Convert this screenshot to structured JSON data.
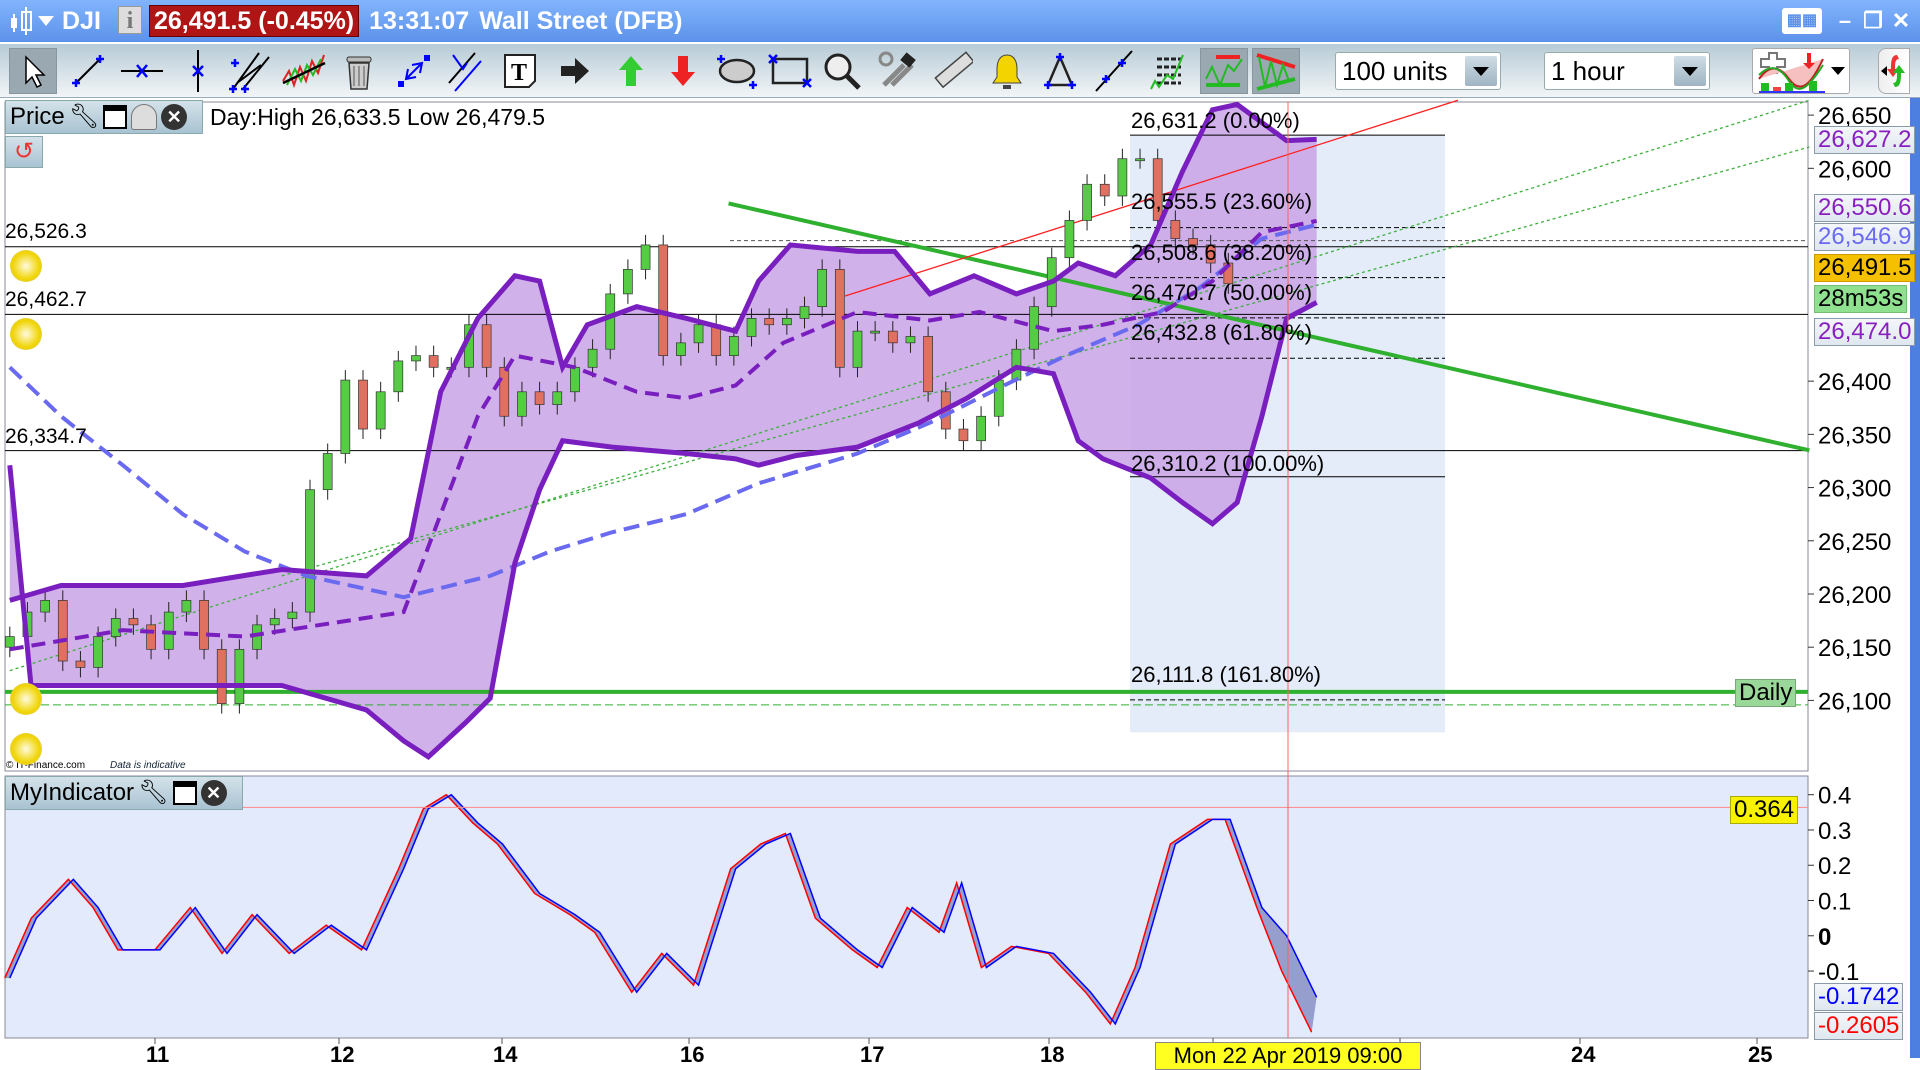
{
  "titlebar": {
    "symbol": "DJI",
    "price_change": "26,491.5 (-0.45%)",
    "time": "13:31:07",
    "market": "Wall Street (DFB)",
    "price_box_color": "#b01515"
  },
  "toolbar": {
    "tools": [
      "pointer",
      "trend-line",
      "horizontal-line",
      "vertical-line",
      "channel",
      "wave",
      "delete-all",
      "resize-line",
      "parallel-line",
      "text",
      "arrow",
      "up-arrow",
      "down-arrow",
      "ellipse",
      "rectangle",
      "zoom",
      "tools",
      "ruler",
      "alert-bell",
      "triangle",
      "ray",
      "fibonacci-listing",
      "pattern-recognition",
      "triangle-pattern"
    ],
    "units_select": "100 units",
    "interval_select": "1 hour"
  },
  "price_panel": {
    "label": "Price",
    "day_stats": "Day:High 26,633.5 Low 26,479.5",
    "watermark": "© IT-Finance.com",
    "disclaimer": "Data is indicative",
    "levels": [
      {
        "label": "26,526.3",
        "value": 26526.3
      },
      {
        "label": "26,462.7",
        "value": 26462.7
      },
      {
        "label": "26,334.7",
        "value": 26334.7
      }
    ],
    "fib": [
      {
        "label": "26,631.2 (0.00%)",
        "value": 26631.2
      },
      {
        "label": "26,555.5 (23.60%)",
        "value": 26555.5
      },
      {
        "label": "26,508.6 (38.20%)",
        "value": 26508.6
      },
      {
        "label": "26,470.7 (50.00%)",
        "value": 26470.7
      },
      {
        "label": "26,432.8 (61.80%)",
        "value": 26432.8
      },
      {
        "label": "26,310.2 (100.00%)",
        "value": 26310.2
      },
      {
        "label": "26,111.8 (161.80%)",
        "value": 26111.8
      }
    ],
    "tags": {
      "upper_band": "26,627.2",
      "middle_band": "26,550.6",
      "ma": "26,546.9",
      "last": "26,491.5",
      "countdown": "28m53s",
      "lower_band": "26,474.0",
      "daily": "Daily"
    }
  },
  "indicator_panel": {
    "label": "MyIndicator",
    "tags": {
      "crosshair": "0.364",
      "blue": "-0.1742",
      "red": "-0.2605"
    }
  },
  "colors": {
    "band": "#7a1fbf",
    "band_fill": "#c9a3e6",
    "ma": "#6a6af0",
    "trend_green": "#2fb02f",
    "bull": "#55cc44",
    "bear": "#e07060",
    "cursor": "#ff6060"
  },
  "chart_data": {
    "type": "candlestick",
    "interval": "1 hour",
    "y_ticks": [
      "26,650",
      "26,600",
      "26,400",
      "26,350",
      "26,300",
      "26,250",
      "26,200",
      "26,150",
      "26,100"
    ],
    "ylim": [
      26060,
      26670
    ],
    "x_ticks": [
      "11",
      "12",
      "14",
      "16",
      "17",
      "18",
      "24",
      "25"
    ],
    "x_highlight": "Mon 22 Apr 2019 09:00",
    "closes": [
      26160,
      26183,
      26194,
      26137,
      26131,
      26160,
      26177,
      26171,
      26148,
      26183,
      26194,
      26148,
      26097,
      26148,
      26171,
      26177,
      26183,
      26298,
      26332,
      26401,
      26355,
      26390,
      26419,
      26424,
      26413,
      26413,
      26453,
      26413,
      26367,
      26390,
      26378,
      26390,
      26413,
      26430,
      26482,
      26505,
      26528,
      26424,
      26436,
      26453,
      26424,
      26442,
      26459,
      26453,
      26459,
      26470,
      26505,
      26413,
      26447,
      26447,
      26436,
      26442,
      26390,
      26355,
      26344,
      26367,
      26401,
      26430,
      26470,
      26516,
      26551,
      26585,
      26574,
      26609,
      26609,
      26551,
      26534,
      26528,
      26511,
      26491.5
    ],
    "bollinger_upper": [
      [
        0,
        26194
      ],
      [
        2.9,
        26208
      ],
      [
        9.8,
        26208
      ],
      [
        15.4,
        26223
      ],
      [
        20.2,
        26217
      ],
      [
        22.7,
        26252
      ],
      [
        24.4,
        26390
      ],
      [
        26.5,
        26459
      ],
      [
        28.6,
        26499
      ],
      [
        30,
        26494
      ],
      [
        31.3,
        26413
      ],
      [
        32.7,
        26453
      ],
      [
        35.5,
        26470
      ],
      [
        38.3,
        26459
      ],
      [
        41.1,
        26447
      ],
      [
        42.4,
        26494
      ],
      [
        44.2,
        26528
      ],
      [
        48,
        26522
      ],
      [
        50.1,
        26522
      ],
      [
        52.1,
        26482
      ],
      [
        54.6,
        26499
      ],
      [
        57,
        26482
      ],
      [
        59.1,
        26494
      ],
      [
        60.5,
        26511
      ],
      [
        62.6,
        26499
      ],
      [
        64.6,
        26528
      ],
      [
        66.4,
        26597
      ],
      [
        68.1,
        26655
      ],
      [
        69.5,
        26660
      ],
      [
        72.3,
        26626
      ],
      [
        74,
        26627.2
      ]
    ],
    "bollinger_lower": [
      [
        0,
        26321
      ],
      [
        1.2,
        26114
      ],
      [
        9.8,
        26114
      ],
      [
        15.4,
        26114
      ],
      [
        20.2,
        26091
      ],
      [
        22.3,
        26062
      ],
      [
        23.7,
        26047
      ],
      [
        25.8,
        26079
      ],
      [
        27.2,
        26102
      ],
      [
        28.6,
        26229
      ],
      [
        30,
        26298
      ],
      [
        31.3,
        26344
      ],
      [
        34.1,
        26338
      ],
      [
        38.3,
        26332
      ],
      [
        41.1,
        26327
      ],
      [
        42.4,
        26321
      ],
      [
        44.5,
        26330
      ],
      [
        48,
        26338
      ],
      [
        51.5,
        26361
      ],
      [
        54.2,
        26384
      ],
      [
        57,
        26413
      ],
      [
        59.1,
        26407
      ],
      [
        60.5,
        26344
      ],
      [
        61.9,
        26327
      ],
      [
        64.6,
        26309
      ],
      [
        66.4,
        26286
      ],
      [
        68.1,
        26266
      ],
      [
        69.5,
        26286
      ],
      [
        70.9,
        26367
      ],
      [
        72.3,
        26459
      ],
      [
        74,
        26474
      ]
    ],
    "bollinger_middle": [
      [
        0,
        26148
      ],
      [
        6.4,
        26166
      ],
      [
        13.3,
        26160
      ],
      [
        22.3,
        26183
      ],
      [
        24.4,
        26275
      ],
      [
        26.5,
        26367
      ],
      [
        28.6,
        26424
      ],
      [
        32,
        26413
      ],
      [
        35.5,
        26390
      ],
      [
        38.3,
        26384
      ],
      [
        41.1,
        26396
      ],
      [
        43.8,
        26436
      ],
      [
        48,
        26465
      ],
      [
        52.1,
        26457
      ],
      [
        54.9,
        26465
      ],
      [
        59.1,
        26447
      ],
      [
        61.9,
        26453
      ],
      [
        65.3,
        26465
      ],
      [
        68.1,
        26494
      ],
      [
        70.9,
        26540
      ],
      [
        74,
        26550.6
      ]
    ],
    "moving_average": [
      [
        0,
        26413
      ],
      [
        2.9,
        26367
      ],
      [
        6.4,
        26321
      ],
      [
        9.8,
        26275
      ],
      [
        13.3,
        26240
      ],
      [
        16.8,
        26217
      ],
      [
        22.3,
        26197
      ],
      [
        27.2,
        26217
      ],
      [
        30.6,
        26240
      ],
      [
        34.1,
        26258
      ],
      [
        38.3,
        26275
      ],
      [
        42.4,
        26304
      ],
      [
        48,
        26332
      ],
      [
        52.1,
        26361
      ],
      [
        56.3,
        26396
      ],
      [
        59.8,
        26424
      ],
      [
        63.9,
        26453
      ],
      [
        67.4,
        26488
      ],
      [
        70.9,
        26534
      ],
      [
        74,
        26546.9
      ]
    ],
    "trendlines": [
      {
        "color": "#2fb02f",
        "style": "solid",
        "from": [
          40.7,
          26567
        ],
        "to": [
          101.9,
          26335
        ]
      },
      {
        "color": "#ff2020",
        "style": "thin",
        "from": [
          47.3,
          26480
        ],
        "to": [
          82,
          26664
        ]
      },
      {
        "color": "#3cb03c",
        "style": "dotted",
        "from": [
          0,
          26128
        ],
        "to": [
          101.9,
          26664
        ]
      },
      {
        "color": "#3cb03c",
        "style": "dotted",
        "from": [
          15.4,
          26217
        ],
        "to": [
          101.9,
          26620
        ]
      }
    ],
    "daily_level": 26108,
    "indicator": {
      "y_ticks": [
        "0.4",
        "0.3",
        "0.2",
        "0.1",
        "0",
        "-0.1"
      ],
      "ylim": [
        -0.3,
        0.45
      ],
      "points": [
        [
          0,
          -0.12
        ],
        [
          1.5,
          0.05
        ],
        [
          3.6,
          0.16
        ],
        [
          5,
          0.08
        ],
        [
          6.4,
          -0.04
        ],
        [
          8.5,
          -0.04
        ],
        [
          10.5,
          0.08
        ],
        [
          12.3,
          -0.05
        ],
        [
          14,
          0.06
        ],
        [
          16.1,
          -0.05
        ],
        [
          18.2,
          0.03
        ],
        [
          20.2,
          -0.04
        ],
        [
          22.3,
          0.19
        ],
        [
          23.7,
          0.36
        ],
        [
          25,
          0.4
        ],
        [
          26.5,
          0.32
        ],
        [
          27.9,
          0.26
        ],
        [
          30,
          0.12
        ],
        [
          32,
          0.06
        ],
        [
          33.4,
          0.01
        ],
        [
          35.5,
          -0.16
        ],
        [
          37.2,
          -0.05
        ],
        [
          39,
          -0.14
        ],
        [
          41.1,
          0.19
        ],
        [
          42.8,
          0.26
        ],
        [
          44.2,
          0.29
        ],
        [
          45.9,
          0.05
        ],
        [
          48,
          -0.04
        ],
        [
          49.4,
          -0.09
        ],
        [
          51.1,
          0.08
        ],
        [
          52.9,
          0.01
        ],
        [
          53.9,
          0.15
        ],
        [
          55.3,
          -0.09
        ],
        [
          57,
          -0.03
        ],
        [
          59.1,
          -0.05
        ],
        [
          61.2,
          -0.16
        ],
        [
          62.6,
          -0.25
        ],
        [
          64,
          -0.09
        ],
        [
          66,
          0.26
        ],
        [
          68.1,
          0.33
        ],
        [
          69.1,
          0.33
        ],
        [
          70.9,
          0.08
        ],
        [
          72.3,
          0
        ],
        [
          74,
          -0.1742
        ]
      ]
    }
  }
}
